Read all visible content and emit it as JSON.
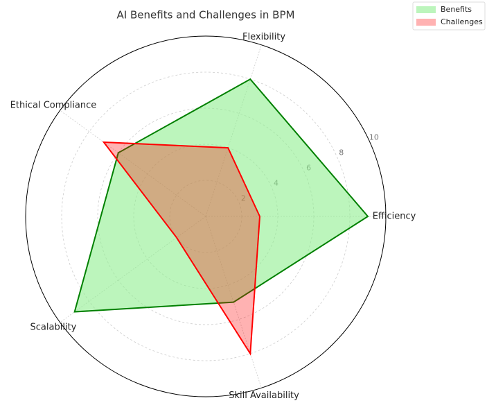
{
  "chart_data": {
    "type": "radar",
    "title": "AI Benefits and Challenges in BPM",
    "categories": [
      "Efficiency",
      "Flexibility",
      "Ethical Compliance",
      "Scalability",
      "Skill Availability"
    ],
    "series": [
      {
        "name": "Benefits",
        "color": "green",
        "fill": "#90ee90",
        "values": [
          9,
          8,
          6,
          9,
          5
        ]
      },
      {
        "name": "Challenges",
        "color": "red",
        "fill": "#ff0000",
        "values": [
          3,
          4,
          7,
          2,
          8
        ]
      }
    ],
    "rlim": [
      0,
      10
    ],
    "rticks": [
      2,
      4,
      6,
      8,
      10
    ],
    "grid": true,
    "legend": "upper right"
  }
}
